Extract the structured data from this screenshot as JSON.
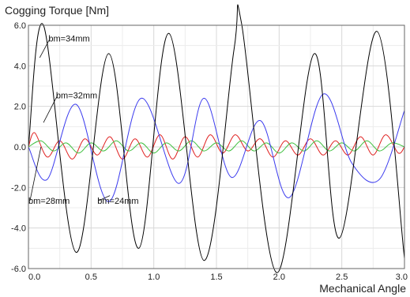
{
  "chart_data": {
    "type": "line",
    "title": "",
    "ylabel": "Cogging Torque [Nm]",
    "xlabel": "Mechanical Angle",
    "xlim": [
      0.0,
      3.0
    ],
    "ylim": [
      -6.0,
      6.0
    ],
    "x_ticks": [
      "0.0",
      "0.5",
      "1.0",
      "1.5",
      "2.0",
      "2.5",
      "3.0"
    ],
    "y_ticks": [
      "6.0",
      "4.0",
      "2.0",
      "0.0",
      "-2.0",
      "-4.0",
      "-6.0"
    ],
    "grid": true,
    "legend": "none",
    "series": [
      {
        "name": "bm=34mm",
        "color": "#000000",
        "x": [
          0.0,
          0.12,
          0.38,
          0.64,
          0.88,
          1.12,
          1.4,
          1.64,
          1.7,
          1.98,
          2.28,
          2.48,
          2.78,
          3.0
        ],
        "y": [
          0.0,
          6.0,
          -5.2,
          4.6,
          -5.0,
          5.6,
          -5.6,
          4.8,
          6.1,
          -6.2,
          4.6,
          -4.5,
          5.7,
          -5.5
        ]
      },
      {
        "name": "bm=32mm",
        "color": "#3a3aee",
        "x": [
          0.0,
          0.15,
          0.38,
          0.64,
          0.9,
          1.2,
          1.4,
          1.62,
          1.85,
          2.08,
          2.35,
          2.58,
          2.8,
          3.0
        ],
        "y": [
          0.0,
          -1.6,
          2.1,
          -2.7,
          2.4,
          -1.8,
          2.4,
          -1.5,
          1.3,
          -2.5,
          2.6,
          -0.8,
          -1.6,
          1.8
        ]
      },
      {
        "name": "bm=28mm",
        "color": "#e02020",
        "x": [
          0.0,
          0.05,
          0.15,
          0.25,
          0.35,
          0.45,
          0.55,
          0.65,
          0.75,
          0.85,
          0.95,
          1.05,
          1.15,
          1.25,
          1.35,
          1.45,
          1.55,
          1.65,
          1.75,
          1.85,
          1.95,
          2.05,
          2.15,
          2.25,
          2.35,
          2.45,
          2.55,
          2.65,
          2.75,
          2.85,
          2.95,
          3.0
        ],
        "y": [
          0.0,
          0.7,
          -0.5,
          0.3,
          -0.6,
          0.4,
          -0.4,
          0.5,
          -0.6,
          0.4,
          -0.5,
          0.6,
          -0.6,
          0.5,
          -0.5,
          0.6,
          -0.3,
          0.6,
          -0.2,
          0.4,
          -0.5,
          0.3,
          -0.4,
          0.4,
          -0.4,
          0.3,
          -0.4,
          0.5,
          -0.4,
          0.6,
          -0.3,
          0.0
        ]
      },
      {
        "name": "bm=24mm",
        "color": "#40c040",
        "x": [
          0.0,
          0.1,
          0.2,
          0.3,
          0.4,
          0.5,
          0.6,
          0.7,
          0.8,
          0.9,
          1.0,
          1.1,
          1.2,
          1.3,
          1.4,
          1.5,
          1.6,
          1.7,
          1.8,
          1.9,
          2.0,
          2.1,
          2.2,
          2.3,
          2.4,
          2.5,
          2.6,
          2.7,
          2.8,
          2.9,
          3.0
        ],
        "y": [
          0.0,
          0.3,
          -0.2,
          0.2,
          -0.3,
          0.2,
          -0.2,
          0.3,
          -0.2,
          0.2,
          -0.3,
          0.2,
          -0.2,
          0.3,
          -0.2,
          0.2,
          -0.2,
          0.3,
          -0.2,
          0.2,
          -0.3,
          0.2,
          -0.2,
          0.3,
          -0.2,
          0.2,
          -0.2,
          0.3,
          -0.2,
          0.2,
          0.0
        ]
      }
    ],
    "annotations": [
      {
        "text": "bm=34mm",
        "at_x": 0.16,
        "at_y": 5.2,
        "data_x": 0.09,
        "data_y": 4.4
      },
      {
        "text": "bm=32mm",
        "at_x": 0.22,
        "at_y": 2.4,
        "data_x": 0.12,
        "data_y": 1.2
      },
      {
        "text": "bm=28mm",
        "at_x": 0.0,
        "at_y": -2.8,
        "data_x": 0.1,
        "data_y": 0.0
      },
      {
        "text": "bm=24mm",
        "at_x": 0.55,
        "at_y": -2.8,
        "data_x": 0.65,
        "data_y": -2.4
      }
    ]
  }
}
